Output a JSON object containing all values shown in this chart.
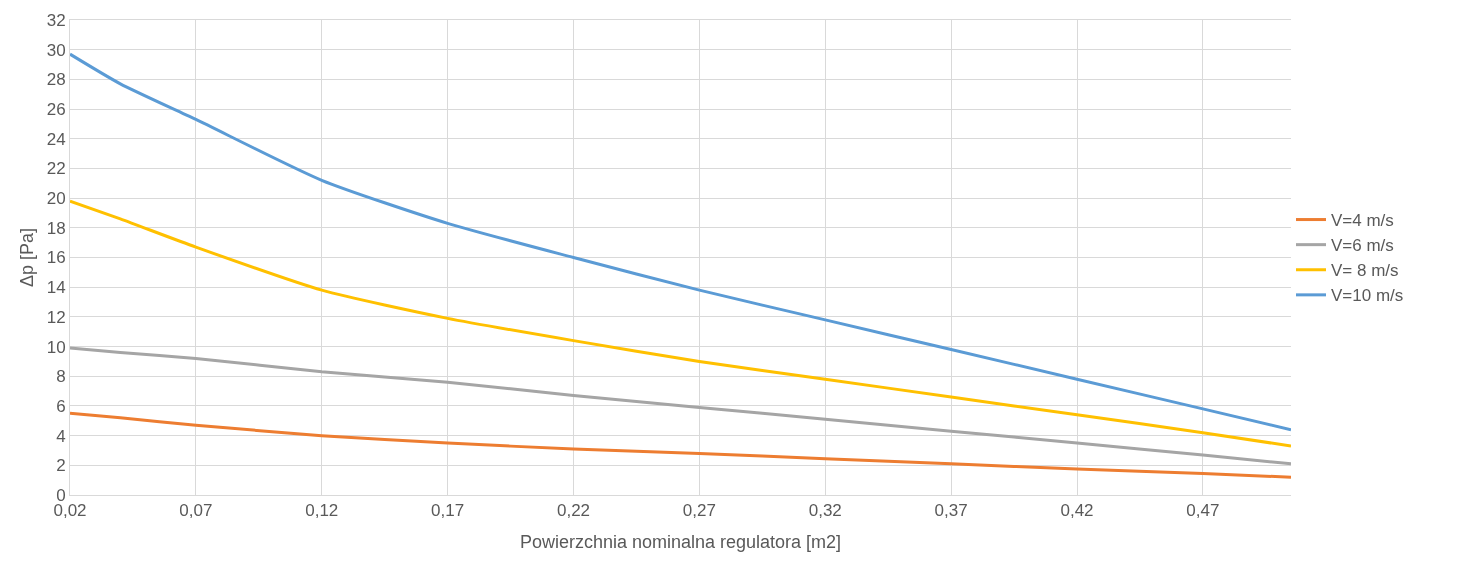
{
  "chart_data": {
    "type": "line",
    "xlabel": "Powierzchnia nominalna regulatora [m2]",
    "ylabel": "Δp [Pa]",
    "x": [
      0.02,
      0.04,
      0.07,
      0.12,
      0.17,
      0.22,
      0.27,
      0.32,
      0.37,
      0.42,
      0.47,
      0.505
    ],
    "series": [
      {
        "name": "V=4 m/s",
        "color": "#ed7d31",
        "values": [
          5.5,
          5.2,
          4.7,
          4.0,
          3.5,
          3.1,
          2.8,
          2.45,
          2.1,
          1.75,
          1.45,
          1.2
        ]
      },
      {
        "name": "V=6 m/s",
        "color": "#a5a5a5",
        "values": [
          9.9,
          9.6,
          9.2,
          8.3,
          7.6,
          6.7,
          5.9,
          5.1,
          4.3,
          3.5,
          2.7,
          2.1
        ]
      },
      {
        "name": "V= 8 m/s",
        "color": "#ffc000",
        "values": [
          19.8,
          18.6,
          16.7,
          13.8,
          11.9,
          10.4,
          9.0,
          7.8,
          6.6,
          5.4,
          4.2,
          3.3
        ]
      },
      {
        "name": "V=10 m/s",
        "color": "#5b9bd5",
        "values": [
          29.7,
          27.7,
          25.3,
          21.2,
          18.3,
          16.0,
          13.8,
          11.8,
          9.8,
          7.8,
          5.8,
          4.4
        ]
      }
    ],
    "xlim": [
      0.02,
      0.505
    ],
    "xticks": [
      {
        "value": 0.02,
        "label": "0,02"
      },
      {
        "value": 0.07,
        "label": "0,07"
      },
      {
        "value": 0.12,
        "label": "0,12"
      },
      {
        "value": 0.17,
        "label": "0,17"
      },
      {
        "value": 0.22,
        "label": "0,22"
      },
      {
        "value": 0.27,
        "label": "0,27"
      },
      {
        "value": 0.32,
        "label": "0,32"
      },
      {
        "value": 0.37,
        "label": "0,37"
      },
      {
        "value": 0.42,
        "label": "0,42"
      },
      {
        "value": 0.47,
        "label": "0,47"
      }
    ],
    "ylim": [
      0,
      32
    ],
    "yticks": [
      0,
      2,
      4,
      6,
      8,
      10,
      12,
      14,
      16,
      18,
      20,
      22,
      24,
      26,
      28,
      30,
      32
    ],
    "grid": true,
    "legend": "right",
    "marker": "none",
    "line_style": "solid"
  }
}
